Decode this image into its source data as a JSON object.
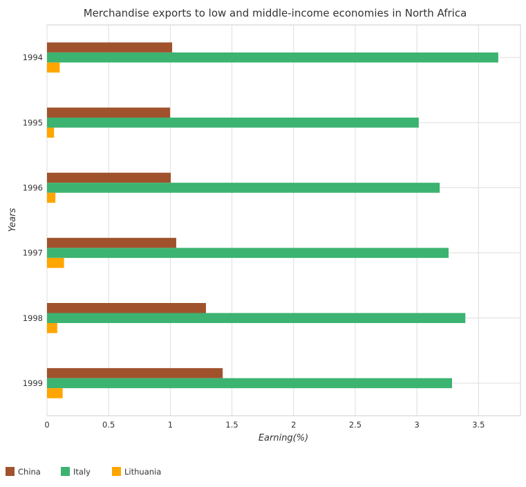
{
  "chart_data": {
    "type": "bar",
    "orientation": "horizontal",
    "title": "Merchandise exports to low and middle-income economies in North Africa",
    "xlabel": "Earning(%)",
    "ylabel": "Years",
    "categories": [
      "1994",
      "1995",
      "1996",
      "1997",
      "1998",
      "1999"
    ],
    "series": [
      {
        "name": "China",
        "color": "#a0522d",
        "values": [
          1.015,
          0.998,
          1.004,
          1.048,
          1.289,
          1.425
        ]
      },
      {
        "name": "Italy",
        "color": "#3cb371",
        "values": [
          3.66,
          3.015,
          3.185,
          3.257,
          3.393,
          3.285
        ]
      },
      {
        "name": "Lithuania",
        "color": "#ffa500",
        "values": [
          0.103,
          0.057,
          0.068,
          0.138,
          0.083,
          0.127
        ]
      }
    ],
    "xlim": [
      0,
      3.84
    ],
    "xticks": [
      "0",
      "0.5",
      "1",
      "1.5",
      "2",
      "2.5",
      "3",
      "3.5"
    ],
    "grid": true,
    "legend_position": "bottom-left"
  }
}
